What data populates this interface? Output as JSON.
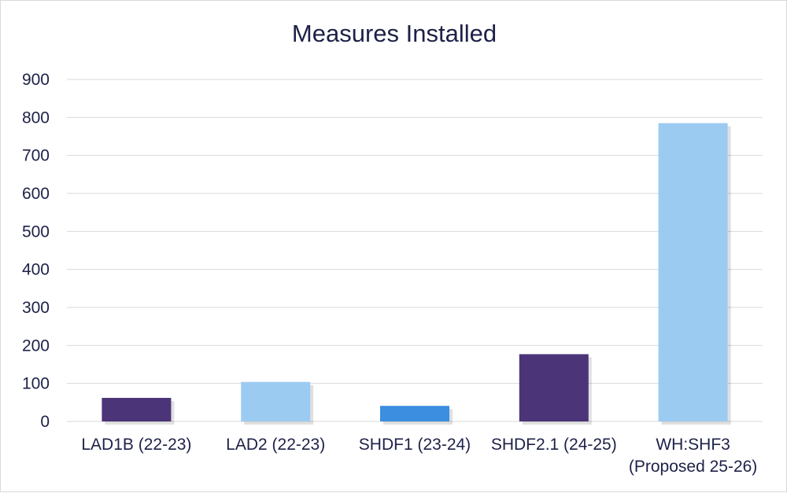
{
  "chart_data": {
    "type": "bar",
    "title": "Measures Installed",
    "xlabel": "",
    "ylabel": "",
    "ylim": [
      0,
      900
    ],
    "yticks": [
      0,
      100,
      200,
      300,
      400,
      500,
      600,
      700,
      800,
      900
    ],
    "grid": true,
    "legend": "none",
    "categories": [
      [
        "LAD1B (22-23)"
      ],
      [
        "LAD2 (22-23)"
      ],
      [
        "SHDF1 (23-24)"
      ],
      [
        "SHDF2.1 (24-25)"
      ],
      [
        "WH:SHF3",
        "(Proposed 25-26)"
      ]
    ],
    "values": [
      62,
      104,
      41,
      177,
      785
    ],
    "bar_colors": [
      "#4b3478",
      "#9ccbf2",
      "#3b8ee0",
      "#4b3478",
      "#9ccbf2"
    ]
  }
}
